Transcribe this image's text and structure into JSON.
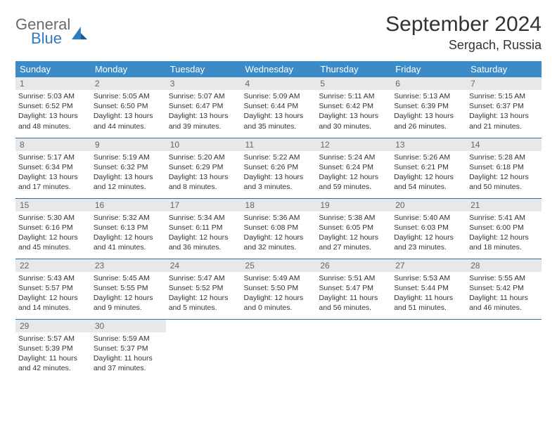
{
  "logo": {
    "text1": "General",
    "text2": "Blue",
    "color1": "#6a6a6a",
    "color2": "#2f7bbf"
  },
  "title": "September 2024",
  "location": "Sergach, Russia",
  "weekdays": [
    "Sunday",
    "Monday",
    "Tuesday",
    "Wednesday",
    "Thursday",
    "Friday",
    "Saturday"
  ],
  "colors": {
    "header_bg": "#3b8bc8",
    "header_text": "#ffffff",
    "daynum_bg": "#e8e8e8",
    "daynum_text": "#666666",
    "row_border": "#2f6fa8",
    "body_text": "#333333"
  },
  "days": [
    {
      "n": 1,
      "sunrise": "5:03 AM",
      "sunset": "6:52 PM",
      "dl_h": 13,
      "dl_m": 48
    },
    {
      "n": 2,
      "sunrise": "5:05 AM",
      "sunset": "6:50 PM",
      "dl_h": 13,
      "dl_m": 44
    },
    {
      "n": 3,
      "sunrise": "5:07 AM",
      "sunset": "6:47 PM",
      "dl_h": 13,
      "dl_m": 39
    },
    {
      "n": 4,
      "sunrise": "5:09 AM",
      "sunset": "6:44 PM",
      "dl_h": 13,
      "dl_m": 35
    },
    {
      "n": 5,
      "sunrise": "5:11 AM",
      "sunset": "6:42 PM",
      "dl_h": 13,
      "dl_m": 30
    },
    {
      "n": 6,
      "sunrise": "5:13 AM",
      "sunset": "6:39 PM",
      "dl_h": 13,
      "dl_m": 26
    },
    {
      "n": 7,
      "sunrise": "5:15 AM",
      "sunset": "6:37 PM",
      "dl_h": 13,
      "dl_m": 21
    },
    {
      "n": 8,
      "sunrise": "5:17 AM",
      "sunset": "6:34 PM",
      "dl_h": 13,
      "dl_m": 17
    },
    {
      "n": 9,
      "sunrise": "5:19 AM",
      "sunset": "6:32 PM",
      "dl_h": 13,
      "dl_m": 12
    },
    {
      "n": 10,
      "sunrise": "5:20 AM",
      "sunset": "6:29 PM",
      "dl_h": 13,
      "dl_m": 8
    },
    {
      "n": 11,
      "sunrise": "5:22 AM",
      "sunset": "6:26 PM",
      "dl_h": 13,
      "dl_m": 3
    },
    {
      "n": 12,
      "sunrise": "5:24 AM",
      "sunset": "6:24 PM",
      "dl_h": 12,
      "dl_m": 59
    },
    {
      "n": 13,
      "sunrise": "5:26 AM",
      "sunset": "6:21 PM",
      "dl_h": 12,
      "dl_m": 54
    },
    {
      "n": 14,
      "sunrise": "5:28 AM",
      "sunset": "6:18 PM",
      "dl_h": 12,
      "dl_m": 50
    },
    {
      "n": 15,
      "sunrise": "5:30 AM",
      "sunset": "6:16 PM",
      "dl_h": 12,
      "dl_m": 45
    },
    {
      "n": 16,
      "sunrise": "5:32 AM",
      "sunset": "6:13 PM",
      "dl_h": 12,
      "dl_m": 41
    },
    {
      "n": 17,
      "sunrise": "5:34 AM",
      "sunset": "6:11 PM",
      "dl_h": 12,
      "dl_m": 36
    },
    {
      "n": 18,
      "sunrise": "5:36 AM",
      "sunset": "6:08 PM",
      "dl_h": 12,
      "dl_m": 32
    },
    {
      "n": 19,
      "sunrise": "5:38 AM",
      "sunset": "6:05 PM",
      "dl_h": 12,
      "dl_m": 27
    },
    {
      "n": 20,
      "sunrise": "5:40 AM",
      "sunset": "6:03 PM",
      "dl_h": 12,
      "dl_m": 23
    },
    {
      "n": 21,
      "sunrise": "5:41 AM",
      "sunset": "6:00 PM",
      "dl_h": 12,
      "dl_m": 18
    },
    {
      "n": 22,
      "sunrise": "5:43 AM",
      "sunset": "5:57 PM",
      "dl_h": 12,
      "dl_m": 14
    },
    {
      "n": 23,
      "sunrise": "5:45 AM",
      "sunset": "5:55 PM",
      "dl_h": 12,
      "dl_m": 9
    },
    {
      "n": 24,
      "sunrise": "5:47 AM",
      "sunset": "5:52 PM",
      "dl_h": 12,
      "dl_m": 5
    },
    {
      "n": 25,
      "sunrise": "5:49 AM",
      "sunset": "5:50 PM",
      "dl_h": 12,
      "dl_m": 0
    },
    {
      "n": 26,
      "sunrise": "5:51 AM",
      "sunset": "5:47 PM",
      "dl_h": 11,
      "dl_m": 56
    },
    {
      "n": 27,
      "sunrise": "5:53 AM",
      "sunset": "5:44 PM",
      "dl_h": 11,
      "dl_m": 51
    },
    {
      "n": 28,
      "sunrise": "5:55 AM",
      "sunset": "5:42 PM",
      "dl_h": 11,
      "dl_m": 46
    },
    {
      "n": 29,
      "sunrise": "5:57 AM",
      "sunset": "5:39 PM",
      "dl_h": 11,
      "dl_m": 42
    },
    {
      "n": 30,
      "sunrise": "5:59 AM",
      "sunset": "5:37 PM",
      "dl_h": 11,
      "dl_m": 37
    }
  ]
}
